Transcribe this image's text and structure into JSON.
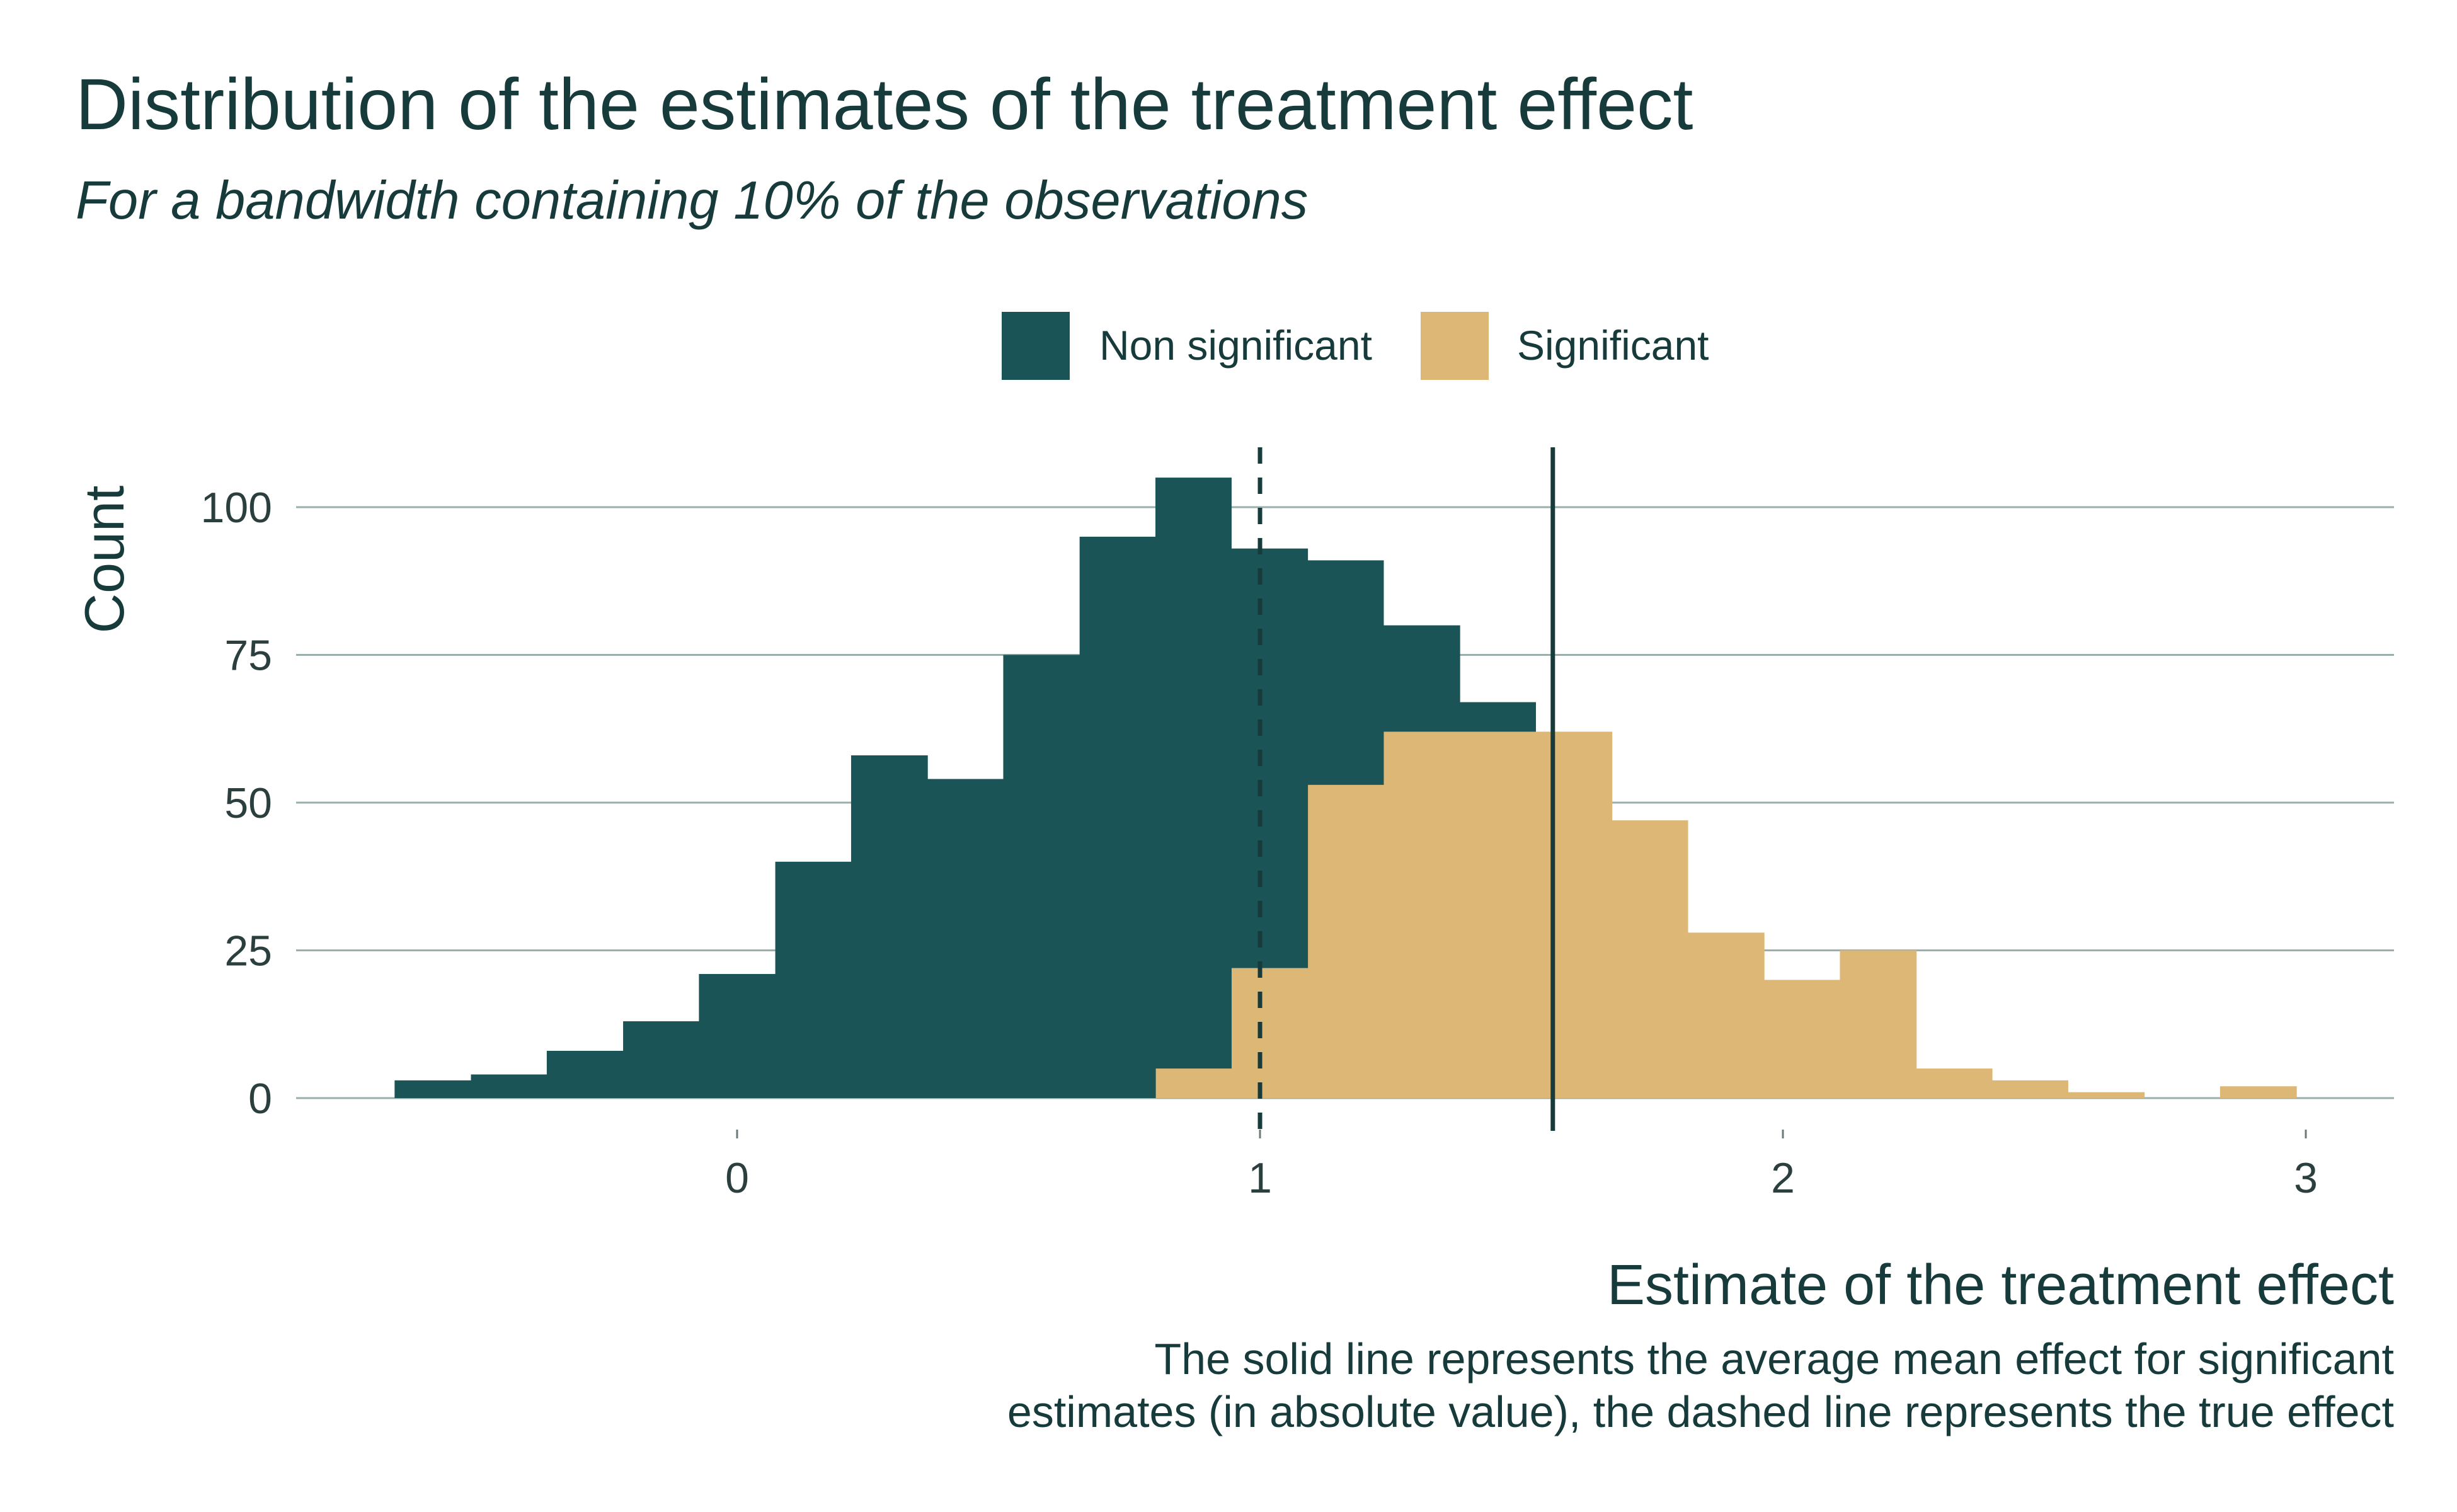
{
  "title": "Distribution of the estimates of the treatment effect",
  "subtitle": "For a bandwidth containing 10% of the observations",
  "caption_line1": "The solid line represents the average mean effect for significant",
  "caption_line2": "estimates (in absolute value), the dashed line represents the true effect",
  "colors": {
    "non_significant": "#1b5457",
    "significant": "#ddb775",
    "grid": "#9aaeae",
    "text": "#173a3b"
  },
  "chart_data": {
    "type": "bar",
    "subtype": "stacked-histogram",
    "xlabel": "Estimate of the treatment effect",
    "ylabel": "Count",
    "xlim": [
      -0.9,
      3.2
    ],
    "ylim": [
      0,
      110
    ],
    "x_ticks": [
      0,
      1,
      2,
      3
    ],
    "y_ticks": [
      0,
      25,
      50,
      75,
      100
    ],
    "bin_width": 0.1455,
    "legend": {
      "position": "top",
      "entries": [
        "Non significant",
        "Significant"
      ]
    },
    "series": [
      {
        "name": "Non significant",
        "bins": [
          {
            "x0": -0.655,
            "x1": -0.509,
            "count": 3
          },
          {
            "x0": -0.509,
            "x1": -0.364,
            "count": 4
          },
          {
            "x0": -0.364,
            "x1": -0.218,
            "count": 8
          },
          {
            "x0": -0.218,
            "x1": -0.073,
            "count": 13
          },
          {
            "x0": -0.073,
            "x1": 0.073,
            "count": 21
          },
          {
            "x0": 0.073,
            "x1": 0.218,
            "count": 40
          },
          {
            "x0": 0.218,
            "x1": 0.364,
            "count": 58
          },
          {
            "x0": 0.364,
            "x1": 0.509,
            "count": 54
          },
          {
            "x0": 0.509,
            "x1": 0.655,
            "count": 75
          },
          {
            "x0": 0.655,
            "x1": 0.8,
            "count": 95
          },
          {
            "x0": 0.8,
            "x1": 0.945,
            "count": 100
          },
          {
            "x0": 0.945,
            "x1": 1.091,
            "count": 71
          },
          {
            "x0": 1.091,
            "x1": 1.236,
            "count": 38
          },
          {
            "x0": 1.236,
            "x1": 1.382,
            "count": 18
          },
          {
            "x0": 1.382,
            "x1": 1.527,
            "count": 5
          }
        ]
      },
      {
        "name": "Significant",
        "bins": [
          {
            "x0": 0.8,
            "x1": 0.945,
            "count": 5
          },
          {
            "x0": 0.945,
            "x1": 1.091,
            "count": 22
          },
          {
            "x0": 1.091,
            "x1": 1.236,
            "count": 53
          },
          {
            "x0": 1.236,
            "x1": 1.382,
            "count": 62
          },
          {
            "x0": 1.382,
            "x1": 1.527,
            "count": 62
          },
          {
            "x0": 1.527,
            "x1": 1.673,
            "count": 62
          },
          {
            "x0": 1.673,
            "x1": 1.818,
            "count": 47
          },
          {
            "x0": 1.818,
            "x1": 1.964,
            "count": 28
          },
          {
            "x0": 1.964,
            "x1": 2.109,
            "count": 20
          },
          {
            "x0": 2.109,
            "x1": 2.255,
            "count": 25
          },
          {
            "x0": 2.255,
            "x1": 2.4,
            "count": 5
          },
          {
            "x0": 2.4,
            "x1": 2.545,
            "count": 3
          },
          {
            "x0": 2.545,
            "x1": 2.691,
            "count": 1
          },
          {
            "x0": 2.836,
            "x1": 2.982,
            "count": 2
          }
        ]
      }
    ],
    "reference_lines": [
      {
        "style": "dashed",
        "x": 1.0,
        "meaning": "true effect"
      },
      {
        "style": "solid",
        "x": 1.56,
        "meaning": "average mean effect for significant estimates"
      }
    ]
  }
}
